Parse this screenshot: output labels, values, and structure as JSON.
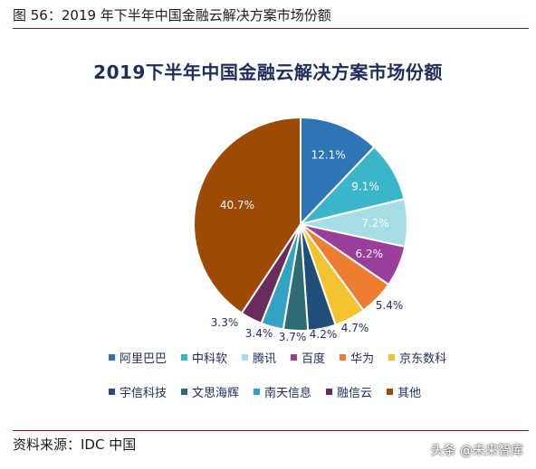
{
  "caption": "图 56：2019 年下半年中国金融云解决方案市场份额",
  "source": "资料来源：IDC 中国",
  "watermark": "头条 @未来智库",
  "chart_data": {
    "type": "pie",
    "title": "2019下半年中国金融云解决方案市场份额",
    "slices": [
      {
        "name": "阿里巴巴",
        "value": 12.1,
        "label": "12.1%",
        "color": "#2e75b6"
      },
      {
        "name": "中科软",
        "value": 9.1,
        "label": "9.1%",
        "color": "#3ab5c9"
      },
      {
        "name": "腾讯",
        "value": 7.2,
        "label": "7.2%",
        "color": "#a7dde5"
      },
      {
        "name": "百度",
        "value": 6.2,
        "label": "6.2%",
        "color": "#9b3d9b"
      },
      {
        "name": "华为",
        "value": 5.4,
        "label": "5.4%",
        "color": "#ed7d31"
      },
      {
        "name": "京东数科",
        "value": 4.7,
        "label": "4.7%",
        "color": "#f4c430"
      },
      {
        "name": "宇信科技",
        "value": 4.2,
        "label": "4.2%",
        "color": "#1f4e79"
      },
      {
        "name": "文思海辉",
        "value": 3.7,
        "label": "3.7%",
        "color": "#2e6b73"
      },
      {
        "name": "南天信息",
        "value": 3.4,
        "label": "3.4%",
        "color": "#33a3c4"
      },
      {
        "name": "融信云",
        "value": 3.3,
        "label": "3.3%",
        "color": "#6a2c5e"
      },
      {
        "name": "其他",
        "value": 40.7,
        "label": "40.7%",
        "color": "#9c4a06"
      }
    ]
  }
}
